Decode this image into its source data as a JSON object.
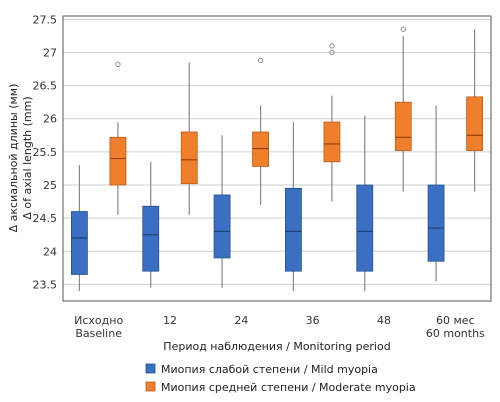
{
  "chart_data": {
    "type": "box",
    "title": "",
    "xlabel": "Период наблюдения / Monitoring period",
    "ylabel_lines": [
      "Δ аксиальной длины (мм)",
      "Δ of axial length (mm)"
    ],
    "ylim": [
      23.25,
      27.55
    ],
    "y_ticks": [
      23.5,
      24,
      24.5,
      25,
      25.5,
      26,
      26.5,
      27,
      27.5
    ],
    "grid": "horizontal",
    "legend_position": "bottom",
    "categories": [
      {
        "line1": "Исходно",
        "line2": "Baseline"
      },
      {
        "line1": "12",
        "line2": ""
      },
      {
        "line1": "24",
        "line2": ""
      },
      {
        "line1": "36",
        "line2": ""
      },
      {
        "line1": "48",
        "line2": ""
      },
      {
        "line1": "60 мес",
        "line2": "60 months"
      }
    ],
    "series": [
      {
        "name": "Миопия слабой степени / Mild myopia",
        "color": "#3a6fc2",
        "boxes": [
          {
            "whislo": 23.4,
            "q1": 23.65,
            "med": 24.2,
            "q3": 24.6,
            "whishi": 25.3,
            "fliers": []
          },
          {
            "whislo": 23.45,
            "q1": 23.7,
            "med": 24.25,
            "q3": 24.68,
            "whishi": 25.35,
            "fliers": []
          },
          {
            "whislo": 23.45,
            "q1": 23.9,
            "med": 24.3,
            "q3": 24.85,
            "whishi": 25.75,
            "fliers": []
          },
          {
            "whislo": 23.4,
            "q1": 23.7,
            "med": 24.3,
            "q3": 24.95,
            "whishi": 25.95,
            "fliers": []
          },
          {
            "whislo": 23.4,
            "q1": 23.7,
            "med": 24.3,
            "q3": 25.0,
            "whishi": 26.05,
            "fliers": []
          },
          {
            "whislo": 23.55,
            "q1": 23.85,
            "med": 24.35,
            "q3": 25.0,
            "whishi": 26.2,
            "fliers": []
          }
        ]
      },
      {
        "name": "Миопия средней степени / Moderate myopia",
        "color": "#f07f2d",
        "boxes": [
          {
            "whislo": 24.55,
            "q1": 25.0,
            "med": 25.4,
            "q3": 25.72,
            "whishi": 25.95,
            "fliers": [
              26.82
            ]
          },
          {
            "whislo": 24.55,
            "q1": 25.02,
            "med": 25.38,
            "q3": 25.8,
            "whishi": 26.85,
            "fliers": []
          },
          {
            "whislo": 24.7,
            "q1": 25.28,
            "med": 25.55,
            "q3": 25.8,
            "whishi": 26.2,
            "fliers": [
              26.88
            ]
          },
          {
            "whislo": 24.75,
            "q1": 25.35,
            "med": 25.62,
            "q3": 25.95,
            "whishi": 26.35,
            "fliers": [
              27.0,
              27.1
            ]
          },
          {
            "whislo": 24.9,
            "q1": 25.52,
            "med": 25.72,
            "q3": 26.25,
            "whishi": 27.25,
            "fliers": [
              27.35
            ]
          },
          {
            "whislo": 24.9,
            "q1": 25.52,
            "med": 25.75,
            "q3": 26.33,
            "whishi": 27.35,
            "fliers": []
          }
        ]
      }
    ]
  }
}
